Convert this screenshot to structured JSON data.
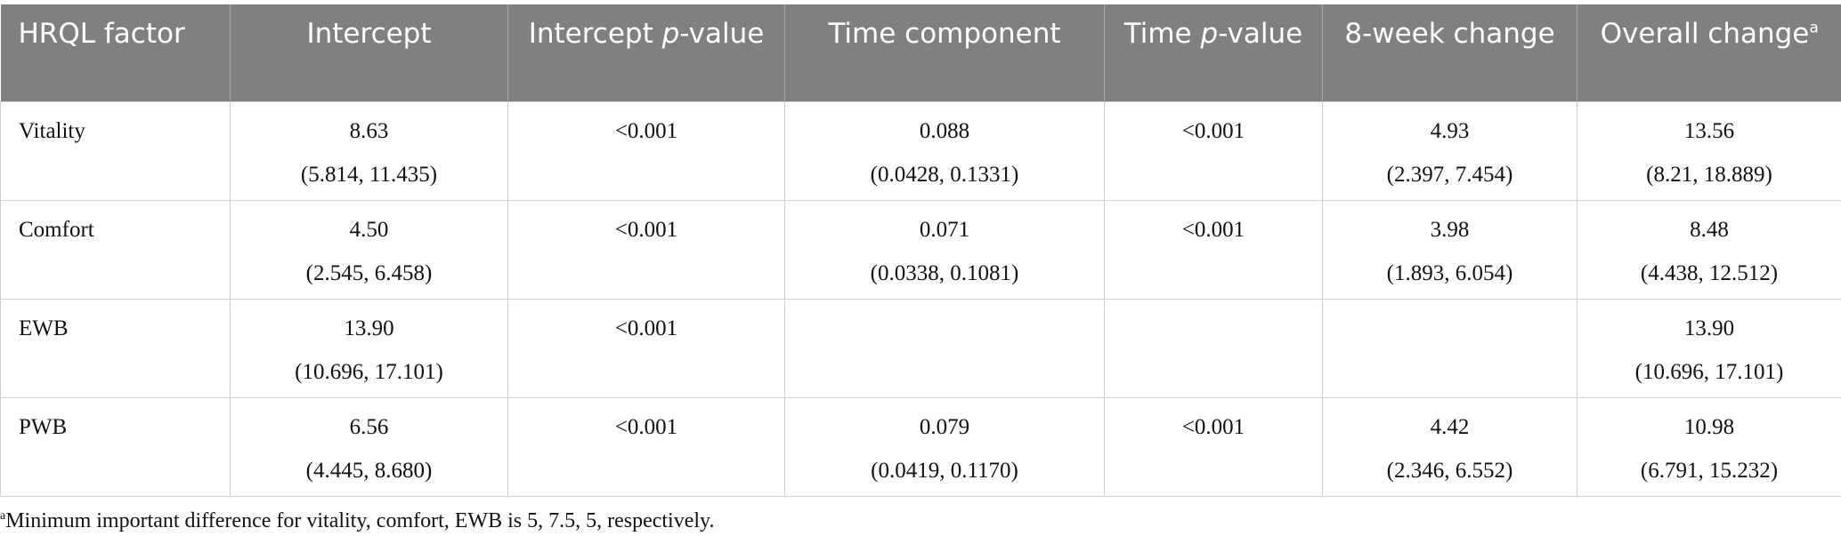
{
  "table": {
    "headers": [
      [
        {
          "text": "HRQL factor"
        }
      ],
      [
        {
          "text": "Intercept"
        }
      ],
      [
        {
          "text": "Intercept "
        },
        {
          "text": "p",
          "italic": true
        },
        {
          "text": "-value"
        }
      ],
      [
        {
          "text": "Time component"
        }
      ],
      [
        {
          "text": "Time "
        },
        {
          "text": "p",
          "italic": true
        },
        {
          "text": "-value"
        }
      ],
      [
        {
          "text": "8-week change"
        }
      ],
      [
        {
          "text": "Overall change"
        },
        {
          "text": "a",
          "sup": true
        }
      ]
    ],
    "rows": [
      [
        "Vitality",
        {
          "estimate": "8.63",
          "ci": "(5.814, 11.435)"
        },
        "<0.001",
        {
          "estimate": "0.088",
          "ci": "(0.0428, 0.1331)"
        },
        "<0.001",
        {
          "estimate": "4.93",
          "ci": "(2.397, 7.454)"
        },
        {
          "estimate": "13.56",
          "ci": "(8.21, 18.889)"
        }
      ],
      [
        "Comfort",
        {
          "estimate": "4.50",
          "ci": "(2.545, 6.458)"
        },
        "<0.001",
        {
          "estimate": "0.071",
          "ci": "(0.0338, 0.1081)"
        },
        "<0.001",
        {
          "estimate": "3.98",
          "ci": "(1.893, 6.054)"
        },
        {
          "estimate": "8.48",
          "ci": "(4.438, 12.512)"
        }
      ],
      [
        "EWB",
        {
          "estimate": "13.90",
          "ci": "(10.696, 17.101)"
        },
        "<0.001",
        null,
        null,
        null,
        {
          "estimate": "13.90",
          "ci": "(10.696, 17.101)"
        }
      ],
      [
        "PWB",
        {
          "estimate": "6.56",
          "ci": "(4.445, 8.680)"
        },
        "<0.001",
        {
          "estimate": "0.079",
          "ci": "(0.0419, 0.1170)"
        },
        "<0.001",
        {
          "estimate": "4.42",
          "ci": "(2.346, 6.552)"
        },
        {
          "estimate": "10.98",
          "ci": "(6.791, 15.232)"
        }
      ]
    ]
  },
  "footnote": {
    "marker": "a",
    "text": "Minimum important difference for vitality, comfort, EWB is 5, 7.5, 5, respectively."
  }
}
